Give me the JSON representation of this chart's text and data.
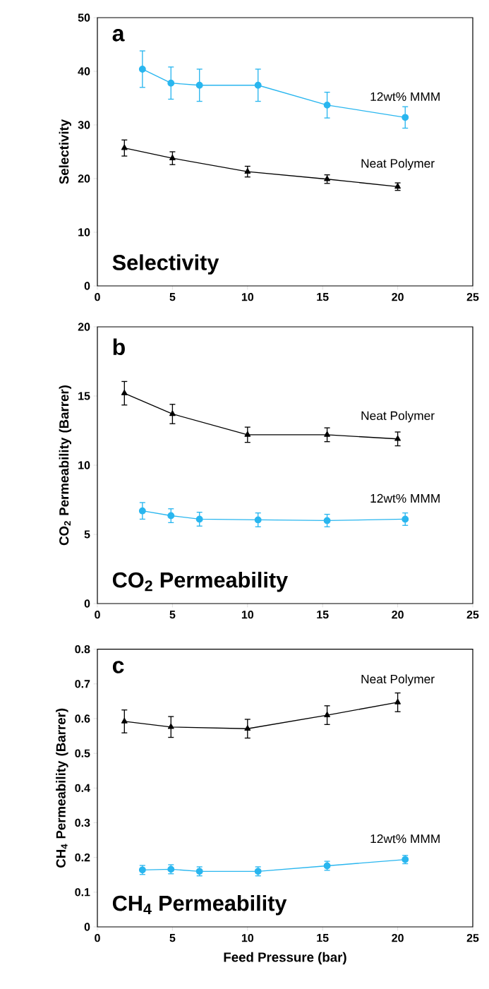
{
  "chart_data": [
    {
      "type": "line",
      "ylabel": "Selectivity",
      "annotations": [
        "a",
        "Selectivity"
      ],
      "xlim": [
        0,
        25
      ],
      "xticks": [
        0,
        5,
        10,
        15,
        20,
        25
      ],
      "ylim": [
        0,
        50
      ],
      "yticks": [
        0,
        10,
        20,
        30,
        40,
        50
      ],
      "legend": false,
      "line_style": "solid",
      "series": [
        {
          "name": "12wt% MMM",
          "color": "#29b6ef",
          "marker": "circle",
          "x": [
            3,
            4.9,
            6.8,
            10.7,
            15.3,
            20.5
          ],
          "values": [
            40.4,
            37.8,
            37.4,
            37.4,
            33.7,
            31.4
          ],
          "errors": [
            3.4,
            3,
            3,
            3,
            2.4,
            2
          ]
        },
        {
          "name": "Neat Polymer",
          "color": "#000000",
          "marker": "triangle",
          "x": [
            1.8,
            5,
            10,
            15.3,
            20
          ],
          "values": [
            25.7,
            23.8,
            21.3,
            19.9,
            18.5
          ],
          "errors": [
            1.5,
            1.2,
            1,
            0.8,
            0.7
          ]
        }
      ]
    },
    {
      "type": "line",
      "ylabel": "CO$_{2}$ Permeability (Barrer)",
      "annotations": [
        "b",
        "CO$_{2}$ Permeability"
      ],
      "xlim": [
        0,
        25
      ],
      "xticks": [
        0,
        5,
        10,
        15,
        20,
        25
      ],
      "ylim": [
        0,
        20
      ],
      "yticks": [
        0,
        5,
        10,
        15,
        20
      ],
      "legend": false,
      "line_style": "solid",
      "series": [
        {
          "name": "Neat Polymer",
          "color": "#000000",
          "marker": "triangle",
          "x": [
            1.8,
            5,
            10,
            15.3,
            20
          ],
          "values": [
            15.2,
            13.7,
            12.2,
            12.2,
            11.9
          ],
          "errors": [
            0.85,
            0.7,
            0.55,
            0.5,
            0.5
          ]
        },
        {
          "name": "12wt% MMM",
          "color": "#29b6ef",
          "marker": "circle",
          "x": [
            3,
            4.9,
            6.8,
            10.7,
            15.3,
            20.5
          ],
          "values": [
            6.7,
            6.35,
            6.1,
            6.05,
            6.0,
            6.1
          ],
          "errors": [
            0.6,
            0.5,
            0.5,
            0.5,
            0.45,
            0.45
          ]
        }
      ]
    },
    {
      "type": "line",
      "xlabel": "Feed Pressure (bar)",
      "ylabel": "CH$_{4}$ Permeability (Barrer)",
      "annotations": [
        "c",
        "CH$_{4}$ Permeability"
      ],
      "xlim": [
        0,
        25
      ],
      "xticks": [
        0,
        5,
        10,
        15,
        20,
        25
      ],
      "ylim": [
        0,
        0.8
      ],
      "yticks": [
        0,
        0.1,
        0.2,
        0.3,
        0.4,
        0.5,
        0.6,
        0.7,
        0.8
      ],
      "legend": false,
      "line_style": "solid",
      "series": [
        {
          "name": "Neat Polymer",
          "color": "#000000",
          "marker": "triangle",
          "x": [
            1.8,
            4.9,
            10,
            15.3,
            20
          ],
          "values": [
            0.592,
            0.576,
            0.571,
            0.61,
            0.647
          ],
          "errors": [
            0.033,
            0.03,
            0.027,
            0.027,
            0.027
          ]
        },
        {
          "name": "12wt% MMM",
          "color": "#29b6ef",
          "marker": "circle",
          "x": [
            3,
            4.9,
            6.8,
            10.7,
            15.3,
            20.5
          ],
          "values": [
            0.164,
            0.166,
            0.16,
            0.16,
            0.176,
            0.194
          ],
          "errors": [
            0.013,
            0.013,
            0.013,
            0.013,
            0.013,
            0.012
          ]
        }
      ]
    }
  ]
}
